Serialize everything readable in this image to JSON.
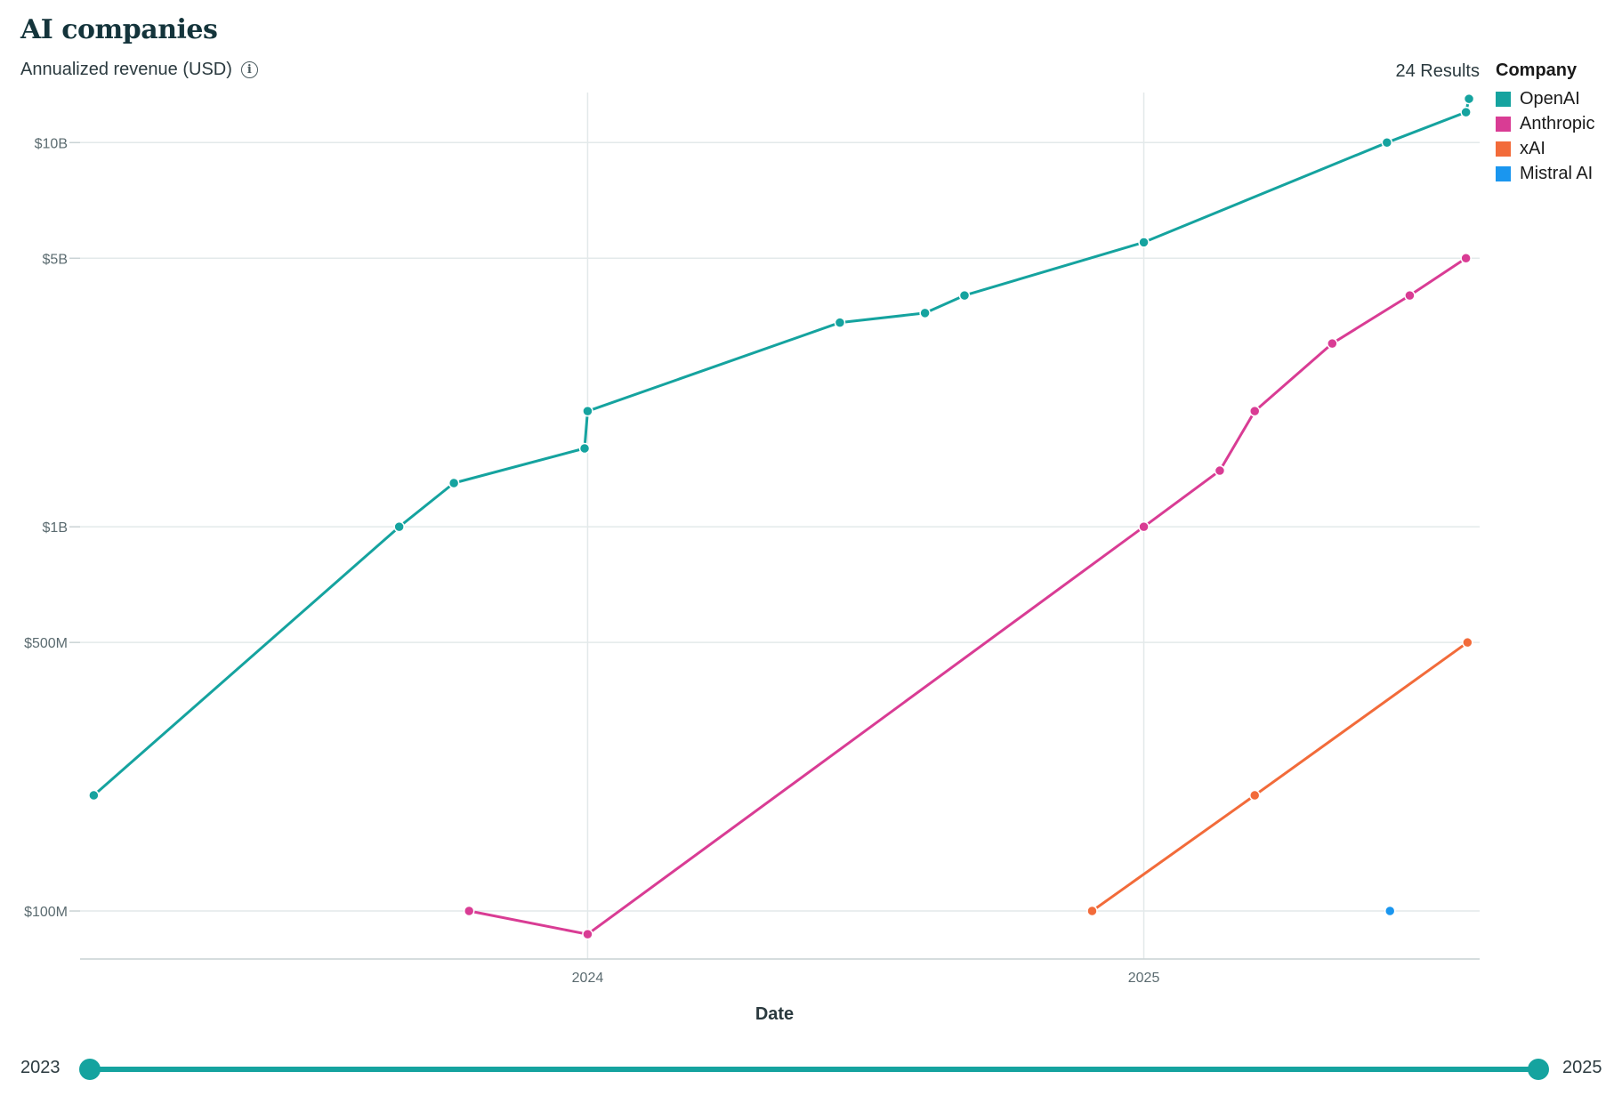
{
  "title": "AI companies",
  "subtitle": "Annualized revenue (USD)",
  "results_label": "24 Results",
  "legend": {
    "title": "Company",
    "items": [
      {
        "label": "OpenAI",
        "color": "#15a39f"
      },
      {
        "label": "Anthropic",
        "color": "#d93c94"
      },
      {
        "label": "xAI",
        "color": "#f26b3a"
      },
      {
        "label": "Mistral AI",
        "color": "#1a96ef"
      }
    ]
  },
  "slider": {
    "start_label": "2023",
    "end_label": "2025"
  },
  "chart_data": {
    "type": "line",
    "title": "AI companies",
    "ylabel": "Annualized revenue (USD)",
    "xlabel": "Date",
    "y_scale": "log",
    "ylim": [
      75000000,
      13500000000
    ],
    "xlim": [
      "2023-02-01",
      "2025-08-10"
    ],
    "y_ticks": [
      {
        "value": 100000000,
        "label": "$100M"
      },
      {
        "value": 500000000,
        "label": "$500M"
      },
      {
        "value": 1000000000,
        "label": "$1B"
      },
      {
        "value": 5000000000,
        "label": "$5B"
      },
      {
        "value": 10000000000,
        "label": "$10B"
      }
    ],
    "x_ticks": [
      {
        "value": "2024-01-01",
        "label": "2024"
      },
      {
        "value": "2025-01-01",
        "label": "2025"
      }
    ],
    "grid": true,
    "legend_position": "right",
    "series": [
      {
        "name": "OpenAI",
        "color": "#15a39f",
        "points": [
          {
            "x": "2023-02-10",
            "y": 200000000
          },
          {
            "x": "2023-08-30",
            "y": 1000000000
          },
          {
            "x": "2023-10-05",
            "y": 1300000000
          },
          {
            "x": "2023-12-30",
            "y": 1600000000
          },
          {
            "x": "2024-01-01",
            "y": 2000000000
          },
          {
            "x": "2024-06-15",
            "y": 3400000000
          },
          {
            "x": "2024-08-10",
            "y": 3600000000
          },
          {
            "x": "2024-09-05",
            "y": 4000000000
          },
          {
            "x": "2025-01-01",
            "y": 5500000000
          },
          {
            "x": "2025-06-10",
            "y": 10000000000
          },
          {
            "x": "2025-08-01",
            "y": 12000000000
          },
          {
            "x": "2025-08-03",
            "y": 13000000000
          }
        ]
      },
      {
        "name": "Anthropic",
        "color": "#d93c94",
        "points": [
          {
            "x": "2023-10-15",
            "y": 100000000
          },
          {
            "x": "2024-01-01",
            "y": 87000000
          },
          {
            "x": "2025-01-01",
            "y": 1000000000
          },
          {
            "x": "2025-02-20",
            "y": 1400000000
          },
          {
            "x": "2025-03-15",
            "y": 2000000000
          },
          {
            "x": "2025-05-05",
            "y": 3000000000
          },
          {
            "x": "2025-06-25",
            "y": 4000000000
          },
          {
            "x": "2025-08-01",
            "y": 5000000000
          }
        ]
      },
      {
        "name": "xAI",
        "color": "#f26b3a",
        "points": [
          {
            "x": "2024-11-28",
            "y": 100000000
          },
          {
            "x": "2025-03-15",
            "y": 200000000
          },
          {
            "x": "2025-08-02",
            "y": 500000000
          }
        ]
      },
      {
        "name": "Mistral AI",
        "color": "#1a96ef",
        "points": [
          {
            "x": "2025-06-12",
            "y": 100000000
          }
        ]
      }
    ]
  }
}
